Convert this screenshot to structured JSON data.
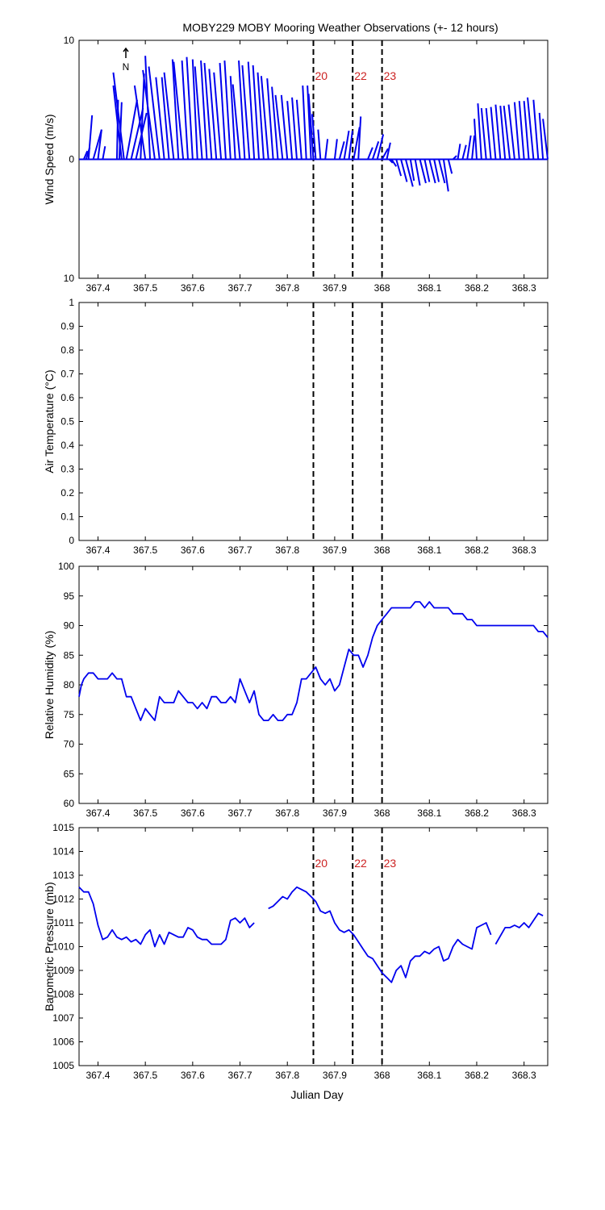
{
  "title": "MOBY229 MOBY Mooring Weather Observations (+- 12 hours)",
  "xlabel": "Julian Day",
  "x_ticks": [
    367.4,
    367.5,
    367.6,
    367.7,
    367.8,
    367.9,
    368,
    368.1,
    368.2,
    368.3
  ],
  "xlim": [
    367.36,
    368.35
  ],
  "event_lines": [
    {
      "x": 367.855,
      "label": "20"
    },
    {
      "x": 367.938,
      "label": "22"
    },
    {
      "x": 368.0,
      "label": "23"
    }
  ],
  "colors": {
    "series": "#0000ee",
    "event_label": "#cc2222",
    "event_line": "#000000"
  },
  "chart_data": [
    {
      "type": "line",
      "subtype": "wind-stick",
      "ylabel": "Wind Speed (m/s)",
      "ylim": [
        -10,
        10
      ],
      "y_ticks": [
        -10,
        0,
        10
      ],
      "y_tick_labels": [
        "10",
        "0",
        "10"
      ],
      "north_arrow_label": "N",
      "show_event_labels": true,
      "sticks": [
        {
          "x": 367.37,
          "u": 0.3,
          "v": 0.7
        },
        {
          "x": 367.375,
          "u": 0.3,
          "v": 1.0
        },
        {
          "x": 367.38,
          "u": 0.3,
          "v": 3.7
        },
        {
          "x": 367.39,
          "u": 0.7,
          "v": 2.5
        },
        {
          "x": 367.4,
          "u": 0.3,
          "v": 2.5
        },
        {
          "x": 367.41,
          "u": 0.2,
          "v": 1.1
        },
        {
          "x": 367.44,
          "u": 0.1,
          "v": 5.0
        },
        {
          "x": 367.445,
          "u": 0.2,
          "v": 4.8
        },
        {
          "x": 367.45,
          "u": -0.7,
          "v": 6.2
        },
        {
          "x": 367.455,
          "u": -0.9,
          "v": 7.3
        },
        {
          "x": 367.46,
          "u": 0.9,
          "v": 5.0
        },
        {
          "x": 367.47,
          "u": 1.0,
          "v": 4.3
        },
        {
          "x": 367.48,
          "u": 0.9,
          "v": 3.9
        },
        {
          "x": 367.49,
          "u": 0.3,
          "v": 7.2
        },
        {
          "x": 367.5,
          "u": -0.9,
          "v": 6.2
        },
        {
          "x": 367.51,
          "u": -0.4,
          "v": 8.7
        },
        {
          "x": 367.52,
          "u": -1.0,
          "v": 7.5
        },
        {
          "x": 367.53,
          "u": -0.9,
          "v": 7.8
        },
        {
          "x": 367.54,
          "u": -0.7,
          "v": 6.9
        },
        {
          "x": 367.55,
          "u": -0.6,
          "v": 6.9
        },
        {
          "x": 367.56,
          "u": -0.8,
          "v": 7.3
        },
        {
          "x": 367.57,
          "u": -0.5,
          "v": 8.4
        },
        {
          "x": 367.58,
          "u": -0.8,
          "v": 8.2
        },
        {
          "x": 367.59,
          "u": -0.5,
          "v": 8.3
        },
        {
          "x": 367.6,
          "u": -0.5,
          "v": 8.6
        },
        {
          "x": 367.61,
          "u": -0.4,
          "v": 8.4
        },
        {
          "x": 367.62,
          "u": -0.6,
          "v": 7.8
        },
        {
          "x": 367.63,
          "u": -0.5,
          "v": 8.3
        },
        {
          "x": 367.64,
          "u": -0.6,
          "v": 8.1
        },
        {
          "x": 367.65,
          "u": -0.6,
          "v": 7.6
        },
        {
          "x": 367.66,
          "u": -0.6,
          "v": 7.3
        },
        {
          "x": 367.67,
          "u": -0.5,
          "v": 8.1
        },
        {
          "x": 367.68,
          "u": -0.5,
          "v": 8.3
        },
        {
          "x": 367.69,
          "u": -0.4,
          "v": 7.0
        },
        {
          "x": 367.7,
          "u": -0.6,
          "v": 6.3
        },
        {
          "x": 367.71,
          "u": -0.5,
          "v": 8.3
        },
        {
          "x": 367.72,
          "u": -0.6,
          "v": 7.9
        },
        {
          "x": 367.73,
          "u": -0.5,
          "v": 8.2
        },
        {
          "x": 367.74,
          "u": -0.5,
          "v": 7.9
        },
        {
          "x": 367.75,
          "u": -0.5,
          "v": 7.3
        },
        {
          "x": 367.76,
          "u": -0.6,
          "v": 7.0
        },
        {
          "x": 367.77,
          "u": -0.5,
          "v": 6.8
        },
        {
          "x": 367.78,
          "u": -0.5,
          "v": 6.1
        },
        {
          "x": 367.79,
          "u": -0.6,
          "v": 5.4
        },
        {
          "x": 367.8,
          "u": -0.5,
          "v": 5.4
        },
        {
          "x": 367.81,
          "u": -0.4,
          "v": 4.9
        },
        {
          "x": 367.82,
          "u": -0.4,
          "v": 5.2
        },
        {
          "x": 367.83,
          "u": -0.4,
          "v": 5.0
        },
        {
          "x": 367.84,
          "u": -0.3,
          "v": 6.2
        },
        {
          "x": 367.85,
          "u": -0.3,
          "v": 6.2
        },
        {
          "x": 367.855,
          "u": -0.4,
          "v": 5.5
        },
        {
          "x": 367.86,
          "u": -0.3,
          "v": 3.8
        },
        {
          "x": 367.87,
          "u": -0.2,
          "v": 2.5
        },
        {
          "x": 367.88,
          "u": 0.2,
          "v": 1.7
        },
        {
          "x": 367.9,
          "u": 0.2,
          "v": 1.7
        },
        {
          "x": 367.91,
          "u": 0.4,
          "v": 1.5
        },
        {
          "x": 367.92,
          "u": 0.4,
          "v": 2.4
        },
        {
          "x": 367.93,
          "u": 0.3,
          "v": 2.4
        },
        {
          "x": 367.94,
          "u": 0.5,
          "v": 2.7
        },
        {
          "x": 367.95,
          "u": 0.2,
          "v": 3.6
        },
        {
          "x": 367.97,
          "u": 0.4,
          "v": 1.0
        },
        {
          "x": 367.98,
          "u": 0.5,
          "v": 1.5
        },
        {
          "x": 367.99,
          "u": 0.5,
          "v": 2.1
        },
        {
          "x": 368.0,
          "u": 0.5,
          "v": 0.9
        },
        {
          "x": 368.01,
          "u": 0.3,
          "v": 1.4
        },
        {
          "x": 368.015,
          "u": 0.3,
          "v": -0.3
        },
        {
          "x": 368.02,
          "u": 0.4,
          "v": -0.6
        },
        {
          "x": 368.03,
          "u": 0.4,
          "v": -1.4
        },
        {
          "x": 368.04,
          "u": 0.5,
          "v": -1.9
        },
        {
          "x": 368.05,
          "u": 0.6,
          "v": -2.3
        },
        {
          "x": 368.06,
          "u": 0.3,
          "v": -1.8
        },
        {
          "x": 368.07,
          "u": 0.4,
          "v": -2.2
        },
        {
          "x": 368.08,
          "u": 0.5,
          "v": -2.0
        },
        {
          "x": 368.09,
          "u": 0.4,
          "v": -1.9
        },
        {
          "x": 368.1,
          "u": 0.5,
          "v": -2.0
        },
        {
          "x": 368.11,
          "u": 0.4,
          "v": -1.9
        },
        {
          "x": 368.12,
          "u": 0.5,
          "v": -2.0
        },
        {
          "x": 368.13,
          "u": 0.4,
          "v": -2.7
        },
        {
          "x": 368.14,
          "u": 0.3,
          "v": -1.2
        },
        {
          "x": 368.15,
          "u": 0.3,
          "v": 0.3
        },
        {
          "x": 368.16,
          "u": 0.2,
          "v": 1.3
        },
        {
          "x": 368.17,
          "u": 0.3,
          "v": 1.2
        },
        {
          "x": 368.18,
          "u": 0.3,
          "v": 2.0
        },
        {
          "x": 368.19,
          "u": 0.2,
          "v": 2.0
        },
        {
          "x": 368.2,
          "u": -0.2,
          "v": 3.4
        },
        {
          "x": 368.21,
          "u": -0.3,
          "v": 4.7
        },
        {
          "x": 368.22,
          "u": -0.4,
          "v": 4.3
        },
        {
          "x": 368.23,
          "u": -0.4,
          "v": 4.3
        },
        {
          "x": 368.24,
          "u": -0.4,
          "v": 4.4
        },
        {
          "x": 368.25,
          "u": -0.4,
          "v": 4.6
        },
        {
          "x": 368.26,
          "u": -0.4,
          "v": 4.5
        },
        {
          "x": 368.27,
          "u": -0.5,
          "v": 4.5
        },
        {
          "x": 368.28,
          "u": -0.5,
          "v": 4.6
        },
        {
          "x": 368.29,
          "u": -0.4,
          "v": 4.8
        },
        {
          "x": 368.3,
          "u": -0.4,
          "v": 4.9
        },
        {
          "x": 368.31,
          "u": -0.4,
          "v": 4.9
        },
        {
          "x": 368.32,
          "u": -0.5,
          "v": 5.2
        },
        {
          "x": 368.33,
          "u": -0.4,
          "v": 5.0
        },
        {
          "x": 368.34,
          "u": -0.3,
          "v": 3.9
        },
        {
          "x": 368.35,
          "u": -0.4,
          "v": 3.4
        }
      ]
    },
    {
      "type": "line",
      "ylabel": "Air Temperature (°C)",
      "ylim": [
        0,
        1
      ],
      "y_ticks": [
        0,
        0.1,
        0.2,
        0.3,
        0.4,
        0.5,
        0.6,
        0.7,
        0.8,
        0.9,
        1
      ],
      "y_tick_labels": [
        "0",
        "0.1",
        "0.2",
        "0.3",
        "0.4",
        "0.5",
        "0.6",
        "0.7",
        "0.8",
        "0.9",
        "1"
      ],
      "show_event_labels": false,
      "series": []
    },
    {
      "type": "line",
      "ylabel": "Relative Humidity (%)",
      "ylim": [
        60,
        100
      ],
      "y_ticks": [
        60,
        65,
        70,
        75,
        80,
        85,
        90,
        95,
        100
      ],
      "y_tick_labels": [
        "60",
        "65",
        "70",
        "75",
        "80",
        "85",
        "90",
        "95",
        "100"
      ],
      "show_event_labels": false,
      "series": [
        {
          "x": [
            367.36,
            367.365,
            367.37,
            367.38,
            367.39,
            367.4,
            367.41,
            367.42,
            367.43,
            367.44,
            367.45,
            367.46,
            367.47,
            367.48,
            367.49,
            367.5,
            367.51,
            367.52,
            367.53,
            367.54,
            367.55,
            367.56,
            367.57,
            367.58,
            367.59,
            367.6,
            367.61,
            367.62,
            367.63,
            367.64,
            367.65,
            367.66,
            367.67,
            367.68,
            367.69,
            367.7,
            367.71,
            367.72,
            367.73,
            367.74,
            367.75,
            367.76,
            367.77,
            367.78,
            367.79,
            367.8,
            367.81,
            367.82,
            367.83,
            367.84,
            367.85,
            367.86,
            367.87,
            367.88,
            367.89,
            367.9,
            367.91,
            367.92,
            367.93,
            367.94,
            367.95,
            367.96,
            367.97,
            367.98,
            367.99,
            368.0,
            368.01,
            368.02,
            368.03,
            368.04,
            368.05,
            368.06,
            368.07,
            368.08,
            368.09,
            368.1,
            368.11,
            368.12,
            368.13,
            368.14,
            368.15,
            368.16,
            368.17,
            368.18,
            368.19,
            368.2,
            368.21,
            368.22,
            368.23,
            368.24,
            368.25,
            368.26,
            368.27,
            368.28,
            368.29,
            368.3,
            368.31,
            368.32,
            368.33,
            368.34,
            368.35
          ],
          "y": [
            78,
            80,
            81,
            82,
            82,
            81,
            81,
            81,
            82,
            81,
            81,
            78,
            78,
            76,
            74,
            76,
            75,
            74,
            78,
            77,
            77,
            77,
            79,
            78,
            77,
            77,
            76,
            77,
            76,
            78,
            78,
            77,
            77,
            78,
            77,
            81,
            79,
            77,
            79,
            75,
            74,
            74,
            75,
            74,
            74,
            75,
            75,
            77,
            81,
            81,
            82,
            83,
            81,
            80,
            81,
            79,
            80,
            83,
            86,
            85,
            85,
            83,
            85,
            88,
            90,
            91,
            92,
            93,
            93,
            93,
            93,
            93,
            94,
            94,
            93,
            94,
            93,
            93,
            93,
            93,
            92,
            92,
            92,
            91,
            91,
            90,
            90,
            90,
            90,
            90,
            90,
            90,
            90,
            90,
            90,
            90,
            90,
            90,
            89,
            89,
            88
          ]
        }
      ]
    },
    {
      "type": "line",
      "ylabel": "Barometric Pressure (mb)",
      "ylim": [
        1005,
        1015
      ],
      "y_ticks": [
        1005,
        1006,
        1007,
        1008,
        1009,
        1010,
        1011,
        1012,
        1013,
        1014,
        1015
      ],
      "y_tick_labels": [
        "1005",
        "1006",
        "1007",
        "1008",
        "1009",
        "1010",
        "1011",
        "1012",
        "1013",
        "1014",
        "1015"
      ],
      "show_event_labels": true,
      "series": [
        {
          "x": [
            367.36,
            367.37,
            367.38,
            367.39,
            367.4,
            367.41,
            367.42,
            367.43,
            367.44,
            367.45,
            367.46,
            367.47,
            367.48,
            367.49,
            367.5,
            367.51,
            367.52,
            367.53,
            367.54,
            367.55,
            367.56,
            367.57,
            367.58,
            367.59,
            367.6,
            367.61,
            367.62,
            367.63,
            367.64,
            367.65,
            367.66,
            367.67,
            367.68,
            367.69,
            367.7,
            367.71,
            367.72,
            367.73,
            367.74
          ],
          "y": [
            1012.5,
            1012.3,
            1012.3,
            1011.8,
            1010.9,
            1010.3,
            1010.4,
            1010.7,
            1010.4,
            1010.3,
            1010.4,
            1010.2,
            1010.3,
            1010.1,
            1010.5,
            1010.7,
            1010.0,
            1010.5,
            1010.1,
            1010.6,
            1010.5,
            1010.4,
            1010.4,
            1010.8,
            1010.7,
            1010.4,
            1010.3,
            1010.3,
            1010.1,
            1010.1,
            1010.1,
            1010.3,
            1011.1,
            1011.2,
            1011.0,
            1011.2,
            1010.8,
            1011.0,
            null
          ]
        },
        {
          "x": [
            367.76,
            367.77,
            367.78,
            367.79,
            367.8,
            367.81,
            367.82,
            367.83,
            367.84,
            367.85,
            367.86,
            367.87,
            367.88,
            367.89,
            367.9,
            367.91,
            367.92,
            367.93,
            367.94,
            367.95,
            367.96,
            367.97,
            367.98,
            367.99,
            368.0,
            368.01,
            368.02,
            368.03,
            368.04,
            368.05,
            368.06,
            368.07,
            368.08,
            368.09,
            368.1,
            368.11,
            368.12,
            368.13,
            368.14,
            368.15,
            368.16,
            368.17,
            368.18,
            368.19,
            368.2,
            368.21,
            368.22,
            368.23
          ],
          "y": [
            1011.6,
            1011.7,
            1011.9,
            1012.1,
            1012.0,
            1012.3,
            1012.5,
            1012.4,
            1012.3,
            1012.1,
            1011.9,
            1011.5,
            1011.4,
            1011.5,
            1011.0,
            1010.7,
            1010.6,
            1010.7,
            1010.5,
            1010.2,
            1009.9,
            1009.6,
            1009.5,
            1009.2,
            1008.9,
            1008.7,
            1008.5,
            1009.0,
            1009.2,
            1008.7,
            1009.4,
            1009.6,
            1009.6,
            1009.8,
            1009.7,
            1009.9,
            1010.0,
            1009.4,
            1009.5,
            1010.0,
            1010.3,
            1010.1,
            1010.0,
            1009.9,
            1010.8,
            1010.9,
            1011.0,
            1010.5
          ]
        },
        {
          "x": [
            368.24,
            368.26,
            368.27,
            368.28,
            368.29,
            368.3,
            368.31,
            368.32,
            368.33,
            368.34,
            368.35
          ],
          "y": [
            1010.1,
            1010.8,
            1010.8,
            1010.9,
            1010.8,
            1011.0,
            1010.8,
            1011.1,
            1011.4,
            1011.3,
            null
          ]
        }
      ]
    }
  ]
}
